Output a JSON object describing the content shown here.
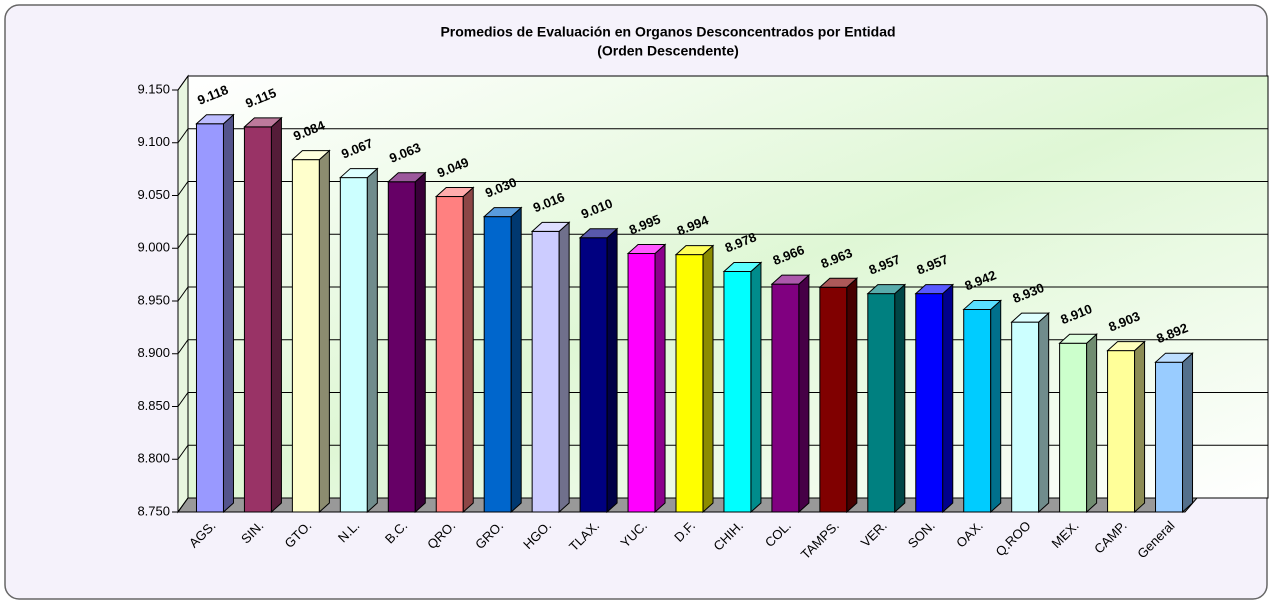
{
  "chart_data": {
    "type": "bar3d",
    "title": "Promedios de Evaluación en Organos Desconcentrados por Entidad",
    "subtitle": "(Orden Descendente)",
    "categories": [
      "AGS.",
      "SIN.",
      "GTO.",
      "N.L.",
      "B.C.",
      "QRO.",
      "GRO.",
      "HGO.",
      "TLAX.",
      "YUC.",
      "D.F.",
      "CHIH.",
      "COL.",
      "TAMPS.",
      "VER.",
      "SON.",
      "OAX.",
      "Q.ROO",
      "MEX.",
      "CAMP.",
      "General"
    ],
    "values": [
      9.118,
      9.115,
      9.084,
      9.067,
      9.063,
      9.049,
      9.03,
      9.016,
      9.01,
      8.995,
      8.994,
      8.978,
      8.966,
      8.963,
      8.957,
      8.957,
      8.942,
      8.93,
      8.91,
      8.903,
      8.892
    ],
    "value_labels": [
      "9.118",
      "9.115",
      "9.084",
      "9.067",
      "9.063",
      "9.049",
      "9.030",
      "9.016",
      "9.010",
      "8.995",
      "8.994",
      "8.978",
      "8.966",
      "8.963",
      "8.957",
      "8.957",
      "8.942",
      "8.930",
      "8.910",
      "8.903",
      "8.892"
    ],
    "colors": [
      "#9999ff",
      "#993366",
      "#ffffcc",
      "#ccffff",
      "#660066",
      "#ff8080",
      "#0066cc",
      "#ccccff",
      "#000080",
      "#ff00ff",
      "#ffff00",
      "#00ffff",
      "#800080",
      "#800000",
      "#008080",
      "#0000ff",
      "#00ccff",
      "#ccffff",
      "#ccffcc",
      "#ffff99",
      "#99ccff"
    ],
    "ylim": [
      8.75,
      9.15
    ],
    "yticks": [
      {
        "value": 8.75,
        "label": "8.750"
      },
      {
        "value": 8.8,
        "label": "8.800"
      },
      {
        "value": 8.85,
        "label": "8.850"
      },
      {
        "value": 8.9,
        "label": "8.900"
      },
      {
        "value": 8.95,
        "label": "8.950"
      },
      {
        "value": 9.0,
        "label": "9.000"
      },
      {
        "value": 9.05,
        "label": "9.050"
      },
      {
        "value": 9.1,
        "label": "9.100"
      },
      {
        "value": 9.15,
        "label": "9.150"
      }
    ],
    "grid": true
  }
}
